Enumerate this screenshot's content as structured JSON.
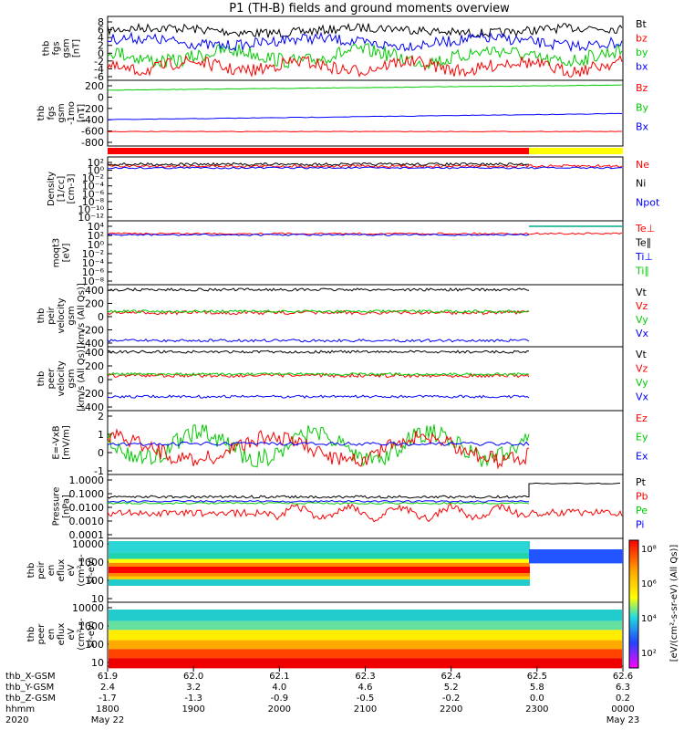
{
  "title": "P1 (TH-B) fields and ground moments overview",
  "chart_data": {
    "type": "line",
    "panels": [
      {
        "id": "fgs",
        "ylabel": [
          "thb",
          "fgs",
          "gsm",
          "[nT]"
        ],
        "yticks": [
          "8",
          "6",
          "4",
          "2",
          "0",
          "-2",
          "-4",
          "-6"
        ],
        "legend": [
          {
            "label": "Bt",
            "color": "#000000"
          },
          {
            "label": "bz",
            "color": "#ff0000"
          },
          {
            "label": "by",
            "color": "#00cc00"
          },
          {
            "label": "bx",
            "color": "#0000ff"
          }
        ]
      },
      {
        "id": "fgs-1",
        "ylabel": [
          "thb",
          "fgs",
          "gsm",
          "-1mo",
          "[nT]"
        ],
        "yticks": [
          "200",
          "0",
          "-200",
          "-400",
          "-600",
          "-800"
        ],
        "legend": [
          {
            "label": "Bz",
            "color": "#ff0000"
          },
          {
            "label": "By",
            "color": "#00cc00"
          },
          {
            "label": "Bx",
            "color": "#0000ff"
          }
        ]
      },
      {
        "id": "density",
        "ylabel": [
          "Density",
          "[1/cc]",
          "[cm-3]"
        ],
        "yticks": [
          "10²",
          "10⁰",
          "10⁻²",
          "10⁻⁴",
          "10⁻⁶",
          "10⁻⁸",
          "10⁻¹⁰",
          "10⁻¹²"
        ],
        "legend": [
          {
            "label": "Ne",
            "color": "#ff0000"
          },
          {
            "label": "Ni",
            "color": "#000000"
          },
          {
            "label": "Npot",
            "color": "#0000ff"
          }
        ]
      },
      {
        "id": "temp",
        "ylabel": [
          "moqt3",
          "[eV]"
        ],
        "yticks": [
          "10⁴",
          "10²",
          "10⁰",
          "10⁻²",
          "10⁻⁴",
          "10⁻⁶",
          "10⁻⁸"
        ],
        "legend": [
          {
            "label": "Te⊥",
            "color": "#ff0000"
          },
          {
            "label": "Te∥",
            "color": "#000000"
          },
          {
            "label": "Ti⊥",
            "color": "#0000ff"
          },
          {
            "label": "Ti∥",
            "color": "#00cc00"
          }
        ]
      },
      {
        "id": "peir-vel",
        "ylabel": [
          "thb",
          "peir",
          "velocity",
          "gsm",
          "[km/s (All Qs)]"
        ],
        "yticks": [
          "400",
          "200",
          "0",
          "-200",
          "-400"
        ],
        "legend": [
          {
            "label": "Vt",
            "color": "#000000"
          },
          {
            "label": "Vz",
            "color": "#ff0000"
          },
          {
            "label": "Vy",
            "color": "#00cc00"
          },
          {
            "label": "Vx",
            "color": "#0000ff"
          }
        ]
      },
      {
        "id": "peer-vel",
        "ylabel": [
          "thb",
          "peer",
          "velocity",
          "gsm",
          "[km/s (All Qs)]"
        ],
        "yticks": [
          "400",
          "200",
          "0",
          "-200",
          "-400"
        ],
        "legend": [
          {
            "label": "Vt",
            "color": "#000000"
          },
          {
            "label": "Vz",
            "color": "#ff0000"
          },
          {
            "label": "Vy",
            "color": "#00cc00"
          },
          {
            "label": "Vx",
            "color": "#0000ff"
          }
        ]
      },
      {
        "id": "exb",
        "ylabel": [
          "E=-VxB",
          "[mV/m]"
        ],
        "yticks": [
          "2",
          "1",
          "0",
          "-1"
        ],
        "legend": [
          {
            "label": "Ez",
            "color": "#ff0000"
          },
          {
            "label": "Ey",
            "color": "#00cc00"
          },
          {
            "label": "Ex",
            "color": "#0000ff"
          }
        ]
      },
      {
        "id": "pressure",
        "ylabel": [
          "Pressure",
          "[nPa]"
        ],
        "yticks": [
          "1.0000",
          "0.1000",
          "0.0100",
          "0.0010",
          "0.0001"
        ],
        "legend": [
          {
            "label": "Pt",
            "color": "#000000"
          },
          {
            "label": "Pb",
            "color": "#ff0000"
          },
          {
            "label": "Pe",
            "color": "#00cc00"
          },
          {
            "label": "Pi",
            "color": "#0000ff"
          }
        ]
      },
      {
        "id": "peir-flux",
        "ylabel": [
          "thb",
          "peir",
          "en",
          "eflux",
          "eV",
          "(cm²-s-",
          "sr-eV)"
        ],
        "yticks": [
          "10000",
          "1000",
          "100",
          "10"
        ],
        "legend": []
      },
      {
        "id": "peer-flux",
        "ylabel": [
          "thb",
          "peer",
          "en",
          "eflux",
          "eV",
          "(cm²-s-",
          "sr-eV)"
        ],
        "yticks": [
          "10000",
          "1000",
          "100",
          "10"
        ],
        "legend": []
      }
    ],
    "colorbar": {
      "labels": [
        "10⁸",
        "10⁶",
        "10⁴",
        "10²"
      ],
      "title": "[eV/(cm²-s-sr-eV) (All Qs)]"
    },
    "xaxis": {
      "row_labels": [
        "thb_X-GSM",
        "thb_Y-GSM",
        "thb_Z-GSM",
        "hhmm",
        "2020"
      ],
      "columns": [
        {
          "values": [
            "61.9",
            "2.4",
            "-1.7",
            "1800",
            "May 22"
          ]
        },
        {
          "values": [
            "62.0",
            "3.2",
            "-1.3",
            "1900",
            ""
          ]
        },
        {
          "values": [
            "62.1",
            "4.0",
            "-0.9",
            "2000",
            ""
          ]
        },
        {
          "values": [
            "62.3",
            "4.6",
            "-0.5",
            "2100",
            ""
          ]
        },
        {
          "values": [
            "62.4",
            "5.2",
            "-0.2",
            "2200",
            ""
          ]
        },
        {
          "values": [
            "62.5",
            "5.8",
            "0.0",
            "2300",
            ""
          ]
        },
        {
          "values": [
            "62.6",
            "6.3",
            "0.2",
            "0000",
            "May 23"
          ]
        }
      ]
    }
  }
}
